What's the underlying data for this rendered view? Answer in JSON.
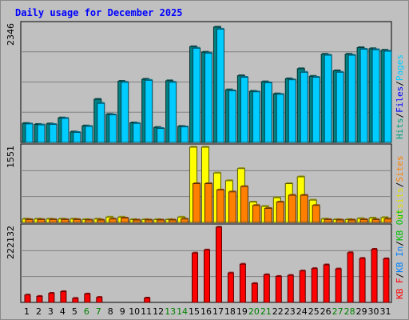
{
  "chart_data": {
    "type": "bar",
    "title": "Daily usage for December 2025",
    "categories": [
      "1",
      "2",
      "3",
      "4",
      "5",
      "6",
      "7",
      "8",
      "9",
      "10",
      "11",
      "12",
      "13",
      "14",
      "15",
      "16",
      "17",
      "18",
      "19",
      "20",
      "21",
      "22",
      "23",
      "24",
      "25",
      "26",
      "27",
      "28",
      "29",
      "30",
      "31"
    ],
    "weekend_days": [
      "6",
      "7",
      "13",
      "14",
      "20",
      "21",
      "27",
      "28"
    ],
    "colors": {
      "pages": "#00ccff",
      "files": "#008080",
      "hits": "#00a080",
      "sites": "#ff8000",
      "visits": "#ffff00",
      "kb_in": "#0080ff",
      "kb_out": "#00c000",
      "kb_f": "#ff0000",
      "weekend_tick": "#008000",
      "weekday_tick": "#000000"
    },
    "panels": [
      {
        "name": "hits-files-pages",
        "max_label": "2346",
        "ymax": 2346,
        "legend": [
          {
            "text": "Hits",
            "color": "#00a080"
          },
          {
            "text": "/",
            "color": "#000000"
          },
          {
            "text": "Files",
            "color": "#0000ff"
          },
          {
            "text": "/",
            "color": "#000000"
          },
          {
            "text": "Pages",
            "color": "#00ccff"
          }
        ],
        "series": [
          {
            "key": "files",
            "values": [
              380,
              360,
              370,
              490,
              210,
              330,
              860,
              560,
              1220,
              390,
              1260,
              300,
              1230,
              320,
              1910,
              1800,
              2300,
              1050,
              1330,
              1020,
              1210,
              970,
              1270,
              1470,
              1320,
              1760,
              1430,
              1760,
              1890,
              1870,
              1840
            ]
          },
          {
            "key": "pages",
            "values": [
              370,
              350,
              360,
              480,
              200,
              320,
              780,
              550,
              1200,
              380,
              1240,
              280,
              1200,
              310,
              1880,
              1780,
              2260,
              1030,
              1300,
              1010,
              1190,
              960,
              1250,
              1400,
              1300,
              1740,
              1400,
              1740,
              1860,
              1850,
              1820
            ]
          }
        ]
      },
      {
        "name": "visits-sites",
        "max_label": "1551",
        "ymax": 1551,
        "legend": [
          {
            "text": "Visits",
            "color": "#e0e000"
          },
          {
            "text": "/",
            "color": "#000000"
          },
          {
            "text": "Sites",
            "color": "#ff8000"
          }
        ],
        "series": [
          {
            "key": "visits",
            "values": [
              70,
              70,
              70,
              70,
              70,
              60,
              70,
              110,
              110,
              60,
              60,
              60,
              60,
              110,
              1551,
              1551,
              1020,
              860,
              1110,
              420,
              330,
              510,
              800,
              940,
              460,
              70,
              60,
              60,
              80,
              90,
              100
            ]
          },
          {
            "key": "sites",
            "values": [
              60,
              60,
              60,
              60,
              60,
              50,
              50,
              70,
              90,
              50,
              50,
              50,
              50,
              70,
              800,
              800,
              670,
              630,
              740,
              350,
              290,
              420,
              560,
              560,
              350,
              60,
              50,
              50,
              60,
              60,
              70
            ]
          }
        ]
      },
      {
        "name": "kbf-kbin-kbout",
        "max_label": "222132",
        "ymax": 222132,
        "legend": [
          {
            "text": "KB F",
            "color": "#ff0000"
          },
          {
            "text": "/",
            "color": "#000000"
          },
          {
            "text": "KB In",
            "color": "#0080ff"
          },
          {
            "text": "/",
            "color": "#000000"
          },
          {
            "text": "KB Out",
            "color": "#00c000"
          }
        ],
        "series": [
          {
            "key": "kb_f",
            "values": [
              22000,
              18000,
              27000,
              32000,
              12000,
              25000,
              15000,
              0,
              0,
              0,
              13000,
              0,
              0,
              0,
              146000,
              155000,
              222132,
              87000,
              113000,
              56000,
              82000,
              77000,
              80000,
              93000,
              100000,
              111000,
              99000,
              147000,
              130000,
              157000,
              129000
            ]
          }
        ]
      }
    ]
  }
}
